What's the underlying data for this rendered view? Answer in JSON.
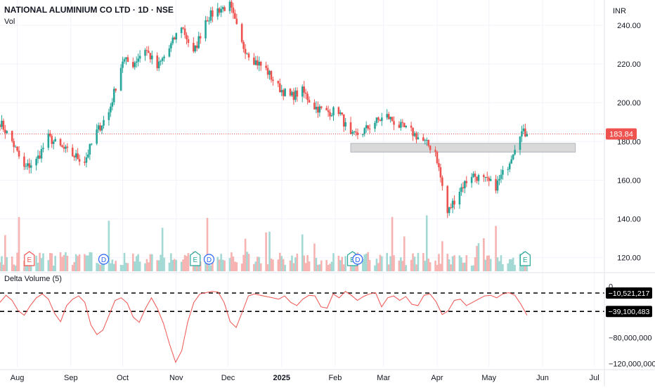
{
  "header": {
    "title": "NATIONAL ALUMINIUM CO LTD · 1D · NSE",
    "vol_label": "Vol",
    "currency": "INR"
  },
  "indicator": {
    "label": "Delta Volume (5)",
    "level_high": "−10,521,217",
    "level_low": "−39,100,483"
  },
  "chart_data": [
    {
      "type": "candlestick",
      "title": "NATIONAL ALUMINIUM CO LTD · 1D · NSE",
      "ylabel": "INR",
      "ylim": [
        113,
        253
      ],
      "y_ticks": [
        "120.00",
        "140.00",
        "160.00",
        "180.00",
        "200.00",
        "220.00",
        "240.00"
      ],
      "last_price": "183.84",
      "colors": {
        "up": "#26a69a",
        "down": "#ef5350",
        "volume_up": "#a3d9d4",
        "volume_down": "#f6b3b1"
      },
      "x_ticks": [
        "Aug",
        "Sep",
        "Oct",
        "Nov",
        "Dec",
        "2025",
        "Feb",
        "Mar",
        "Apr",
        "May",
        "Jun",
        "Jul"
      ],
      "zone": {
        "from_date": "2025-02-10",
        "to_date": "2025-06-20",
        "low": 174.5,
        "high": 179
      },
      "closes": [
        {
          "date": "2024-07-22",
          "close": 190
        },
        {
          "date": "2024-07-29",
          "close": 180
        },
        {
          "date": "2024-08-05",
          "close": 166
        },
        {
          "date": "2024-08-12",
          "close": 170
        },
        {
          "date": "2024-08-19",
          "close": 182
        },
        {
          "date": "2024-08-26",
          "close": 177
        },
        {
          "date": "2024-09-02",
          "close": 173
        },
        {
          "date": "2024-09-09",
          "close": 170
        },
        {
          "date": "2024-09-16",
          "close": 185
        },
        {
          "date": "2024-09-23",
          "close": 195
        },
        {
          "date": "2024-10-01",
          "close": 222
        },
        {
          "date": "2024-10-07",
          "close": 220
        },
        {
          "date": "2024-10-14",
          "close": 228
        },
        {
          "date": "2024-10-21",
          "close": 218
        },
        {
          "date": "2024-10-28",
          "close": 228
        },
        {
          "date": "2024-11-04",
          "close": 240
        },
        {
          "date": "2024-11-11",
          "close": 225
        },
        {
          "date": "2024-11-18",
          "close": 243
        },
        {
          "date": "2024-11-25",
          "close": 248
        },
        {
          "date": "2024-12-02",
          "close": 250
        },
        {
          "date": "2024-12-09",
          "close": 230
        },
        {
          "date": "2024-12-16",
          "close": 222
        },
        {
          "date": "2024-12-23",
          "close": 217
        },
        {
          "date": "2024-12-30",
          "close": 208
        },
        {
          "date": "2025-01-06",
          "close": 203
        },
        {
          "date": "2025-01-13",
          "close": 206
        },
        {
          "date": "2025-01-20",
          "close": 198
        },
        {
          "date": "2025-01-27",
          "close": 195
        },
        {
          "date": "2025-02-03",
          "close": 196
        },
        {
          "date": "2025-02-10",
          "close": 182
        },
        {
          "date": "2025-02-17",
          "close": 185
        },
        {
          "date": "2025-02-24",
          "close": 190
        },
        {
          "date": "2025-03-03",
          "close": 193
        },
        {
          "date": "2025-03-10",
          "close": 188
        },
        {
          "date": "2025-03-17",
          "close": 185
        },
        {
          "date": "2025-03-24",
          "close": 180
        },
        {
          "date": "2025-03-31",
          "close": 175
        },
        {
          "date": "2025-04-07",
          "close": 143
        },
        {
          "date": "2025-04-14",
          "close": 155
        },
        {
          "date": "2025-04-21",
          "close": 163
        },
        {
          "date": "2025-04-28",
          "close": 160
        },
        {
          "date": "2025-05-05",
          "close": 157
        },
        {
          "date": "2025-05-12",
          "close": 168
        },
        {
          "date": "2025-05-19",
          "close": 185
        },
        {
          "date": "2025-05-23",
          "close": 183.84
        }
      ],
      "events": [
        {
          "label": "E",
          "date": "2024-08-08"
        },
        {
          "label": "D",
          "date": "2024-09-20"
        },
        {
          "label": "E",
          "date": "2024-11-12"
        },
        {
          "label": "D",
          "date": "2024-11-20"
        },
        {
          "label": "E",
          "date": "2025-02-11"
        },
        {
          "label": "D",
          "date": "2025-02-14"
        },
        {
          "label": "E",
          "date": "2025-05-22"
        }
      ]
    },
    {
      "type": "line",
      "title": "Delta Volume (5)",
      "ylim": [
        -125000000,
        8000000
      ],
      "y_ticks": [
        "0",
        "−80,000,000",
        "−120,000,000"
      ],
      "levels": [
        -10521217,
        -39100483
      ],
      "x_range": [
        "2024-07-22",
        "2025-05-23"
      ],
      "values": [
        -25,
        -14,
        -22,
        -38,
        -45,
        -30,
        -18,
        -12,
        -20,
        -42,
        -55,
        -30,
        -20,
        -15,
        -25,
        -60,
        -75,
        -68,
        -45,
        -22,
        -18,
        -26,
        -48,
        -56,
        -35,
        -18,
        -35,
        -58,
        -90,
        -118,
        -100,
        -55,
        -25,
        -12,
        -10,
        -8,
        -9,
        -25,
        -55,
        -64,
        -40,
        -15,
        -12,
        -14,
        -16,
        -18,
        -20,
        -15,
        -25,
        -30,
        -20,
        -14,
        -15,
        -32,
        -34,
        -12,
        -18,
        -8,
        -14,
        -22,
        -16,
        -12,
        -10,
        -32,
        -18,
        -15,
        -22,
        -16,
        -28,
        -30,
        -14,
        -12,
        -24,
        -44,
        -38,
        -22,
        -20,
        -30,
        -25,
        -20,
        -15,
        -14,
        -18,
        -12,
        -10,
        -14,
        -28,
        -45
      ]
    }
  ]
}
